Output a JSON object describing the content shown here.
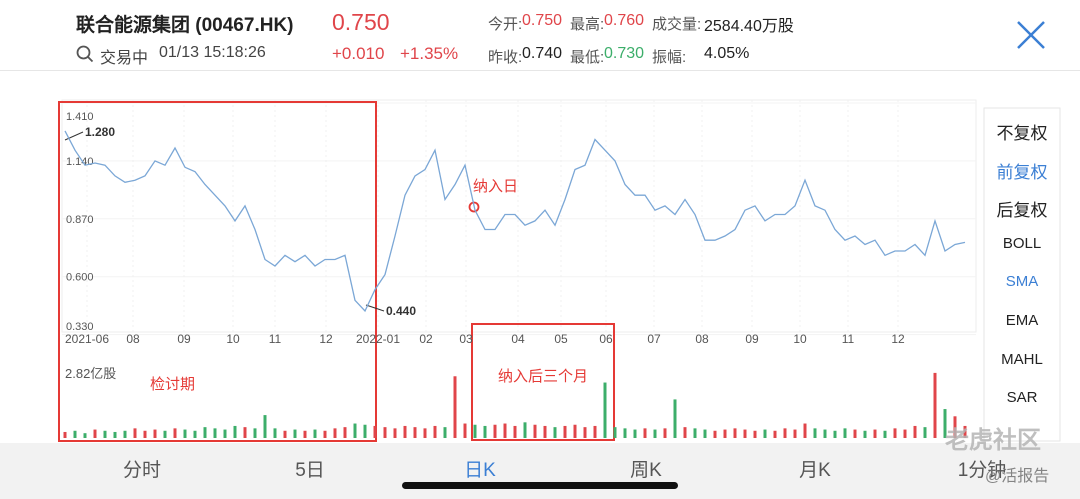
{
  "header": {
    "name": "联合能源集团 (00467.HK)",
    "price": "0.750",
    "status": "交易中",
    "time": "01/13 15:18:26",
    "change": "+0.010",
    "change_pct": "+1.35%",
    "stats": [
      {
        "label": "今开:",
        "value": "0.750"
      },
      {
        "label": "最高:",
        "value": "0.760"
      },
      {
        "label": "成交量:",
        "value": "2584.40万股"
      },
      {
        "label": "昨收:",
        "value": "0.740"
      },
      {
        "label": "最低:",
        "value": "0.730"
      },
      {
        "label": "振幅:",
        "value": "4.05%"
      }
    ]
  },
  "chart_data": {
    "type": "line",
    "color": "#7ba7d6",
    "values": [
      1.28,
      1.19,
      1.12,
      1.13,
      1.12,
      1.07,
      1.04,
      1.05,
      1.07,
      1.14,
      1.12,
      1.2,
      1.11,
      1.09,
      1.03,
      0.98,
      0.93,
      0.86,
      0.93,
      0.82,
      0.68,
      0.65,
      0.7,
      0.67,
      0.7,
      0.65,
      0.68,
      0.68,
      0.7,
      0.49,
      0.44,
      0.54,
      0.61,
      0.79,
      0.98,
      1.07,
      1.1,
      1.19,
      0.96,
      1.03,
      1.12,
      0.91,
      0.82,
      0.82,
      0.89,
      0.89,
      0.84,
      0.86,
      0.91,
      0.84,
      0.96,
      1.1,
      1.12,
      1.24,
      1.19,
      1.14,
      1.03,
      0.98,
      0.98,
      0.91,
      0.93,
      0.89,
      0.96,
      0.89,
      0.77,
      0.77,
      0.79,
      0.82,
      0.91,
      0.93,
      0.86,
      0.89,
      0.89,
      0.93,
      1.05,
      0.93,
      0.91,
      0.82,
      0.77,
      0.79,
      0.75,
      0.77,
      0.7,
      0.72,
      0.72,
      0.75,
      0.7,
      0.86,
      0.72,
      0.75,
      0.76
    ],
    "ylim": [
      0.33,
      1.41
    ],
    "yticks": [
      {
        "value": 1.41,
        "label": "1.410"
      },
      {
        "value": 1.14,
        "label": "1.140"
      },
      {
        "value": 0.87,
        "label": "0.870"
      },
      {
        "value": 0.6,
        "label": "0.600"
      },
      {
        "value": 0.33,
        "label": "0.330"
      }
    ],
    "x_labels": [
      "2021-06",
      "08",
      "09",
      "10",
      "11",
      "12",
      "2022-01",
      "02",
      "03",
      "04",
      "05",
      "06",
      "07",
      "08",
      "09",
      "10",
      "11",
      "12"
    ],
    "annotations": [
      "1.280",
      "0.440",
      "纳入日",
      "检讨期",
      "纳入后三个月"
    ],
    "volume": {
      "label": "2.82亿股",
      "ylim": [
        0,
        2.82
      ],
      "up_color": "#e0454a",
      "down_color": "#3cae6a",
      "values": [
        0.25,
        0.3,
        0.2,
        0.35,
        0.3,
        0.25,
        0.3,
        0.4,
        0.3,
        0.35,
        0.3,
        0.4,
        0.35,
        0.3,
        0.45,
        0.4,
        0.35,
        0.5,
        0.45,
        0.4,
        0.95,
        0.4,
        0.3,
        0.35,
        0.3,
        0.35,
        0.3,
        0.4,
        0.45,
        0.6,
        0.55,
        0.5,
        0.45,
        0.4,
        0.5,
        0.45,
        0.4,
        0.5,
        0.45,
        2.56,
        0.6,
        0.55,
        0.5,
        0.55,
        0.6,
        0.5,
        0.65,
        0.55,
        0.5,
        0.45,
        0.5,
        0.55,
        0.45,
        0.5,
        2.3,
        0.45,
        0.4,
        0.35,
        0.4,
        0.35,
        0.4,
        1.6,
        0.45,
        0.4,
        0.35,
        0.3,
        0.35,
        0.4,
        0.35,
        0.3,
        0.35,
        0.3,
        0.4,
        0.35,
        0.6,
        0.4,
        0.35,
        0.3,
        0.4,
        0.35,
        0.3,
        0.35,
        0.3,
        0.4,
        0.35,
        0.5,
        0.45,
        2.7,
        1.2,
        0.9,
        0.5
      ]
    }
  },
  "side_menu": [
    "不复权",
    "前复权",
    "后复权",
    "BOLL",
    "SMA",
    "EMA",
    "MAHL",
    "SAR"
  ],
  "tabs": [
    "分时",
    "5日",
    "日K",
    "周K",
    "月K",
    "1分钟"
  ],
  "watermark": [
    "老虎社区",
    "@活报告"
  ]
}
